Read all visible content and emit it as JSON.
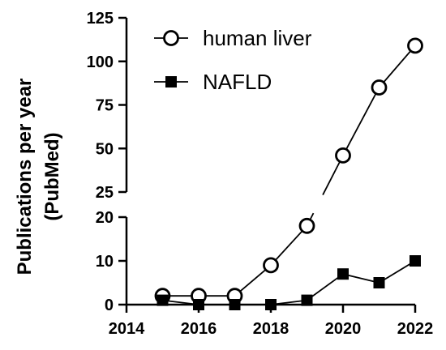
{
  "chart_data": {
    "type": "line",
    "ylabel_line1": "Publications per year",
    "ylabel_line2": "(PubMed)",
    "x": [
      2015,
      2016,
      2017,
      2018,
      2019,
      2020,
      2021,
      2022
    ],
    "x_ticks": [
      "2014",
      "2016",
      "2018",
      "2020",
      "2022"
    ],
    "xlim": [
      2014,
      2022
    ],
    "y_segments": [
      {
        "range": [
          0,
          20
        ],
        "ticks": [
          "0",
          "10",
          "20"
        ]
      },
      {
        "range": [
          25,
          125
        ],
        "ticks": [
          "25",
          "50",
          "75",
          "100",
          "125"
        ]
      }
    ],
    "y_axis_break": true,
    "series": [
      {
        "name": "human liver",
        "marker": "open-circle",
        "values": [
          2,
          2,
          2,
          9,
          18,
          46,
          85,
          109
        ]
      },
      {
        "name": "NAFLD",
        "marker": "filled-square",
        "values": [
          1,
          0,
          0,
          0,
          1,
          7,
          5,
          10
        ]
      }
    ],
    "legend_position": "top-right",
    "color": "#000000"
  }
}
